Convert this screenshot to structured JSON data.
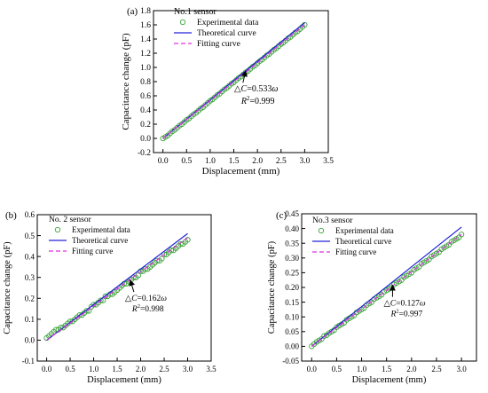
{
  "chart_data": [
    {
      "panel": "(a)",
      "type": "scatter",
      "sensor": "No.1 sensor",
      "xlabel": "Displacement (mm)",
      "ylabel": "Capacitance change (pF)",
      "xlim": [
        -0.2,
        3.5
      ],
      "ylim": [
        -0.2,
        1.8
      ],
      "xticks": [
        "0.0",
        "0.5",
        "1.0",
        "1.5",
        "2.0",
        "2.5",
        "3.0",
        "3.5"
      ],
      "yticks": [
        "-0.2",
        "0.0",
        "0.2",
        "0.4",
        "0.6",
        "0.8",
        "1.0",
        "1.2",
        "1.4",
        "1.6",
        "1.8"
      ],
      "legend": [
        "Experimental data",
        "Theoretical curve",
        "Fitting curve"
      ],
      "annotation": {
        "equation_lhs": "△C",
        "equation_rhs": "=0.533",
        "variable": "ω",
        "r2_label": "R",
        "r2_exp": "2",
        "r2_value": "=0.999",
        "arrow_at": [
          1.75,
          0.96
        ]
      },
      "theoretical": {
        "x": [
          0,
          3
        ],
        "y": [
          0,
          1.63
        ]
      },
      "fitting": {
        "x": [
          0,
          3
        ],
        "y": [
          0,
          1.6
        ]
      },
      "experimental": {
        "x": [
          0.0,
          0.05,
          0.1,
          0.15,
          0.2,
          0.25,
          0.3,
          0.35,
          0.4,
          0.45,
          0.5,
          0.55,
          0.6,
          0.65,
          0.7,
          0.75,
          0.8,
          0.85,
          0.9,
          0.95,
          1.0,
          1.05,
          1.1,
          1.15,
          1.2,
          1.25,
          1.3,
          1.35,
          1.4,
          1.45,
          1.5,
          1.55,
          1.6,
          1.65,
          1.7,
          1.75,
          1.8,
          1.85,
          1.9,
          1.95,
          2.0,
          2.05,
          2.1,
          2.15,
          2.2,
          2.25,
          2.3,
          2.35,
          2.4,
          2.45,
          2.5,
          2.55,
          2.6,
          2.65,
          2.7,
          2.75,
          2.8,
          2.85,
          2.9,
          2.95,
          3.0
        ],
        "y": [
          0.0,
          0.02,
          0.04,
          0.07,
          0.1,
          0.12,
          0.15,
          0.18,
          0.2,
          0.23,
          0.26,
          0.28,
          0.31,
          0.34,
          0.36,
          0.39,
          0.42,
          0.44,
          0.47,
          0.5,
          0.53,
          0.55,
          0.58,
          0.61,
          0.63,
          0.66,
          0.69,
          0.71,
          0.74,
          0.77,
          0.79,
          0.82,
          0.85,
          0.87,
          0.9,
          0.93,
          0.95,
          0.98,
          1.01,
          1.03,
          1.06,
          1.09,
          1.11,
          1.14,
          1.17,
          1.19,
          1.22,
          1.25,
          1.27,
          1.3,
          1.33,
          1.35,
          1.38,
          1.41,
          1.43,
          1.46,
          1.49,
          1.51,
          1.54,
          1.57,
          1.6
        ]
      }
    },
    {
      "panel": "(b)",
      "type": "scatter",
      "sensor": "No. 2 sensor",
      "xlabel": "Displacement (mm)",
      "ylabel": "Capacitance change (pF)",
      "xlim": [
        -0.2,
        3.5
      ],
      "ylim": [
        -0.1,
        0.6
      ],
      "xticks": [
        "0.0",
        "0.5",
        "1.0",
        "1.5",
        "2.0",
        "2.5",
        "3.0",
        "3.5"
      ],
      "yticks": [
        "-0.1",
        "0.0",
        "0.1",
        "0.2",
        "0.3",
        "0.4",
        "0.5",
        "0.6"
      ],
      "legend": [
        "Experimental data",
        "Theoretical curve",
        "Fitting curve"
      ],
      "annotation": {
        "equation_lhs": "△C",
        "equation_rhs": "=0.162",
        "variable": "ω",
        "r2_label": "R",
        "r2_exp": "2",
        "r2_value": "=0.998",
        "arrow_at": [
          1.78,
          0.29
        ]
      },
      "theoretical": {
        "x": [
          0,
          3
        ],
        "y": [
          0,
          0.51
        ]
      },
      "fitting": {
        "x": [
          0,
          3
        ],
        "y": [
          0,
          0.49
        ]
      },
      "experimental": {
        "x": [
          0.0,
          0.05,
          0.1,
          0.15,
          0.2,
          0.25,
          0.3,
          0.35,
          0.4,
          0.45,
          0.5,
          0.55,
          0.6,
          0.65,
          0.7,
          0.75,
          0.8,
          0.85,
          0.9,
          0.95,
          1.0,
          1.05,
          1.1,
          1.15,
          1.2,
          1.25,
          1.3,
          1.35,
          1.4,
          1.45,
          1.5,
          1.55,
          1.6,
          1.65,
          1.7,
          1.75,
          1.8,
          1.85,
          1.9,
          1.95,
          2.0,
          2.05,
          2.1,
          2.15,
          2.2,
          2.25,
          2.3,
          2.35,
          2.4,
          2.45,
          2.5,
          2.55,
          2.6,
          2.65,
          2.7,
          2.75,
          2.8,
          2.85,
          2.9,
          2.95,
          3.0
        ],
        "y": [
          0.01,
          0.02,
          0.03,
          0.04,
          0.05,
          0.05,
          0.06,
          0.06,
          0.07,
          0.08,
          0.09,
          0.09,
          0.1,
          0.11,
          0.12,
          0.12,
          0.13,
          0.14,
          0.14,
          0.16,
          0.17,
          0.17,
          0.18,
          0.19,
          0.19,
          0.21,
          0.21,
          0.22,
          0.22,
          0.23,
          0.24,
          0.25,
          0.26,
          0.27,
          0.27,
          0.28,
          0.29,
          0.3,
          0.3,
          0.31,
          0.33,
          0.33,
          0.34,
          0.34,
          0.35,
          0.36,
          0.37,
          0.38,
          0.38,
          0.39,
          0.41,
          0.41,
          0.42,
          0.43,
          0.43,
          0.44,
          0.45,
          0.46,
          0.46,
          0.47,
          0.48
        ]
      }
    },
    {
      "panel": "(c)",
      "type": "scatter",
      "sensor": "No.3 sensor",
      "xlabel": "Displacement (mm)",
      "ylabel": "Capacitance change (pF)",
      "xlim": [
        -0.2,
        3.3
      ],
      "ylim": [
        -0.05,
        0.45
      ],
      "xticks": [
        "0.0",
        "0.5",
        "1.0",
        "1.5",
        "2.0",
        "2.5",
        "3.0"
      ],
      "yticks": [
        "-0.05",
        "0.00",
        "0.05",
        "0.10",
        "0.15",
        "0.20",
        "0.25",
        "0.30",
        "0.35",
        "0.40",
        "0.45"
      ],
      "legend": [
        "Experimental data",
        "Theoretical curve",
        "Fitting curve"
      ],
      "annotation": {
        "equation_lhs": "△C",
        "equation_rhs": "=0.127",
        "variable": "ω",
        "r2_label": "R",
        "r2_exp": "2",
        "r2_value": "=0.997",
        "arrow_at": [
          1.62,
          0.21
        ]
      },
      "theoretical": {
        "x": [
          0,
          3
        ],
        "y": [
          0,
          0.405
        ]
      },
      "fitting": {
        "x": [
          0,
          3
        ],
        "y": [
          0,
          0.38
        ]
      },
      "experimental": {
        "x": [
          0.0,
          0.05,
          0.1,
          0.15,
          0.2,
          0.25,
          0.3,
          0.35,
          0.4,
          0.45,
          0.5,
          0.55,
          0.6,
          0.65,
          0.7,
          0.75,
          0.8,
          0.85,
          0.9,
          0.95,
          1.0,
          1.05,
          1.1,
          1.15,
          1.2,
          1.25,
          1.3,
          1.35,
          1.4,
          1.45,
          1.5,
          1.55,
          1.6,
          1.65,
          1.7,
          1.75,
          1.8,
          1.85,
          1.9,
          1.95,
          2.0,
          2.05,
          2.1,
          2.15,
          2.2,
          2.25,
          2.3,
          2.35,
          2.4,
          2.45,
          2.5,
          2.55,
          2.6,
          2.65,
          2.7,
          2.75,
          2.8,
          2.85,
          2.9,
          2.95,
          3.0
        ],
        "y": [
          0.0,
          0.008,
          0.015,
          0.02,
          0.025,
          0.035,
          0.038,
          0.045,
          0.05,
          0.055,
          0.065,
          0.07,
          0.075,
          0.08,
          0.09,
          0.095,
          0.1,
          0.105,
          0.115,
          0.12,
          0.125,
          0.13,
          0.14,
          0.145,
          0.15,
          0.16,
          0.165,
          0.17,
          0.175,
          0.185,
          0.19,
          0.195,
          0.2,
          0.21,
          0.215,
          0.22,
          0.225,
          0.235,
          0.24,
          0.245,
          0.25,
          0.26,
          0.265,
          0.27,
          0.28,
          0.285,
          0.29,
          0.295,
          0.305,
          0.31,
          0.315,
          0.32,
          0.33,
          0.335,
          0.34,
          0.345,
          0.355,
          0.36,
          0.365,
          0.37,
          0.38
        ]
      }
    }
  ],
  "colors": {
    "experimental": "#3aa33a",
    "theoretical": "#2323d8",
    "fitting": "#e030e0",
    "axis": "#000000"
  }
}
